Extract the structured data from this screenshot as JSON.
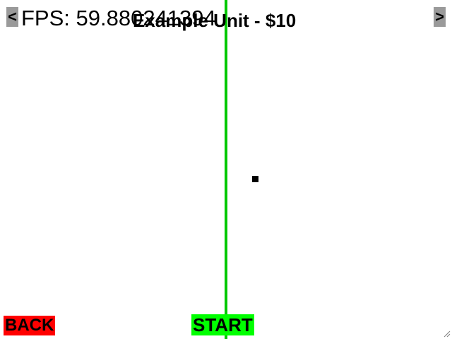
{
  "hud": {
    "fps_text": "FPS: 59.880241394"
  },
  "selector": {
    "prev_label": "<",
    "next_label": ">",
    "unit_title": "Example Unit - $10"
  },
  "buttons": {
    "back_label": "BACK",
    "start_label": "START"
  },
  "colors": {
    "background": "#ffffff",
    "center_line": "#00c800",
    "back_button": "#ff0000",
    "start_button": "#00ff00",
    "nav_button": "#9a9a9a"
  }
}
